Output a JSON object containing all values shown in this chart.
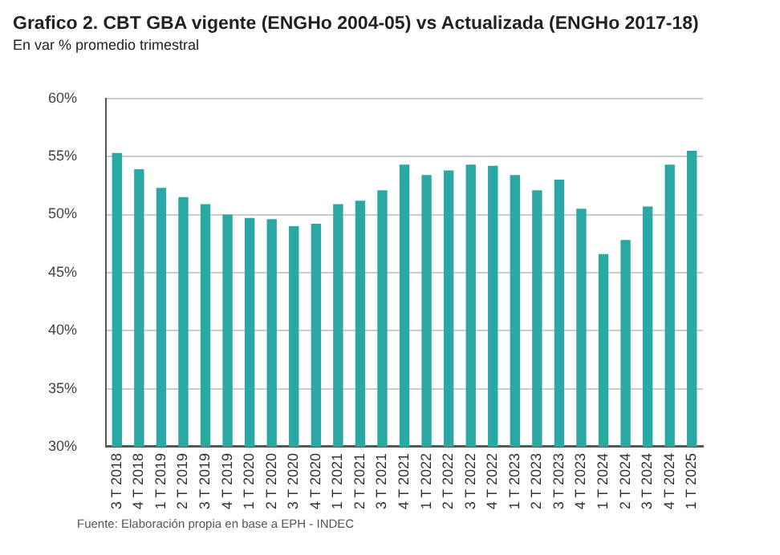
{
  "chart_data": {
    "type": "bar",
    "title": "Grafico 2. CBT GBA vigente (ENGHo 2004-05) vs Actualizada (ENGHo 2017-18)",
    "subtitle": "En var % promedio trimestral",
    "categories": [
      "3 T 2018",
      "4 T 2018",
      "1 T 2019",
      "2 T 2019",
      "3 T 2019",
      "4 T 2019",
      "1 T 2020",
      "2 T 2020",
      "3 T 2020",
      "4 T 2020",
      "1 T 2021",
      "2 T 2021",
      "3 T 2021",
      "4 T 2021",
      "1 T 2022",
      "2 T 2022",
      "3 T 2022",
      "4 T 2022",
      "1 T 2023",
      "2 T 2023",
      "3 T 2023",
      "4 T 2023",
      "1 T 2024",
      "2 T 2024",
      "3 T 2024",
      "4 T 2024",
      "1 T 2025"
    ],
    "values": [
      55.3,
      53.9,
      52.3,
      51.5,
      50.9,
      50.0,
      49.7,
      49.6,
      49.0,
      49.2,
      50.9,
      51.2,
      52.1,
      54.3,
      53.4,
      53.8,
      54.3,
      54.2,
      53.4,
      52.1,
      53.0,
      50.5,
      46.6,
      47.8,
      50.7,
      54.3,
      55.5
    ],
    "color": "#2aa8a4",
    "ylim": [
      30,
      60
    ],
    "yticks": [
      {
        "value": 30,
        "label": "30%"
      },
      {
        "value": 35,
        "label": "35%"
      },
      {
        "value": 40,
        "label": "40%"
      },
      {
        "value": 45,
        "label": "45%"
      },
      {
        "value": 50,
        "label": "50%"
      },
      {
        "value": 55,
        "label": "55%"
      },
      {
        "value": 60,
        "label": "60%"
      }
    ],
    "grid": "y",
    "annotations": [
      "Fuente: Elaboración propia en base a EPH - INDEC"
    ]
  }
}
